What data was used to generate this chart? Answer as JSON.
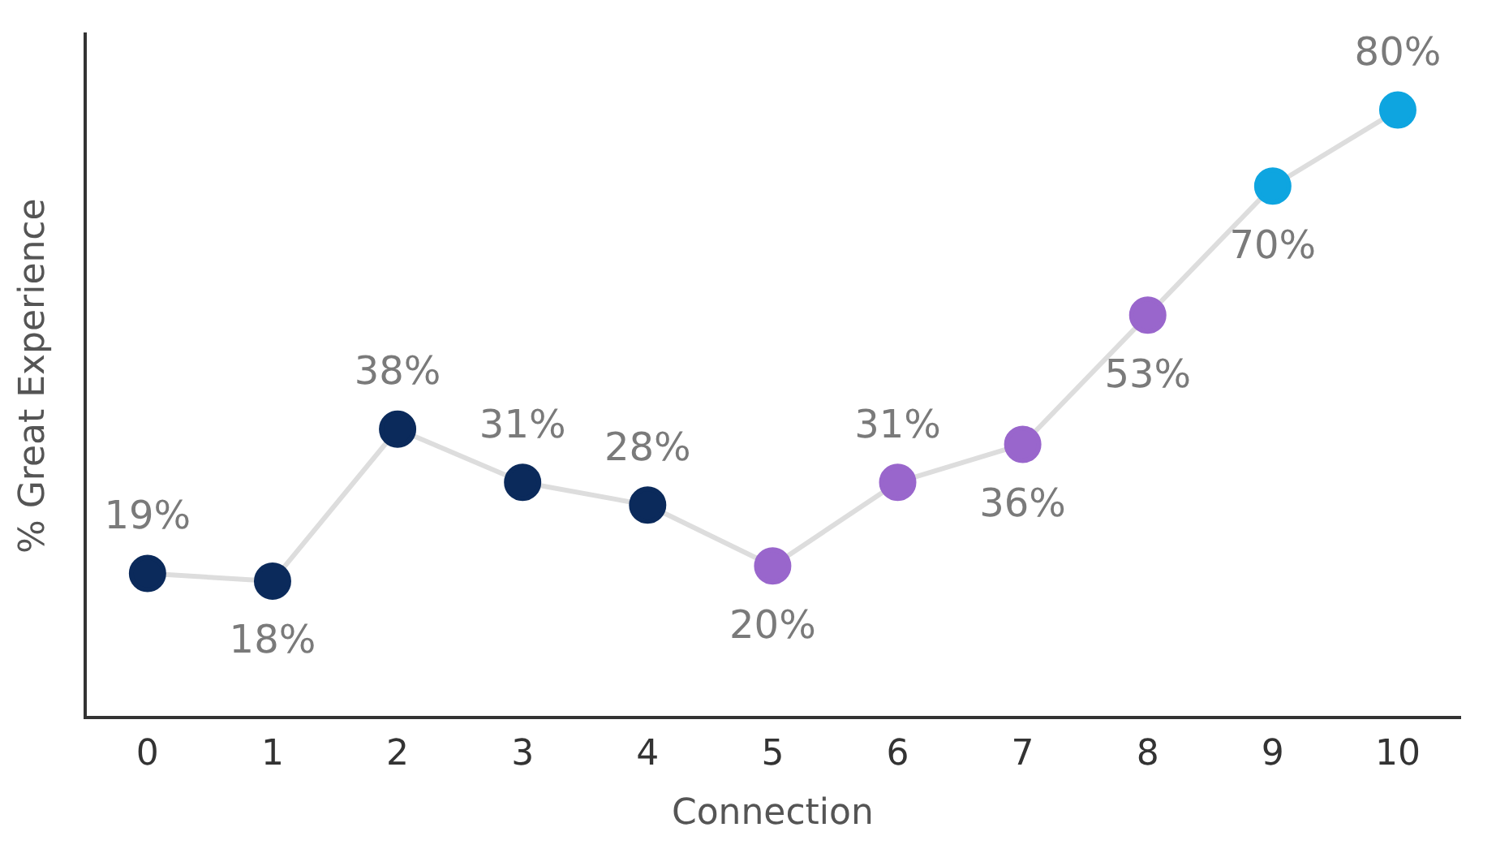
{
  "chart_data": {
    "type": "line",
    "xlabel": "Connection",
    "ylabel": "% Great Experience",
    "categories": [
      "0",
      "1",
      "2",
      "3",
      "4",
      "5",
      "6",
      "7",
      "8",
      "9",
      "10"
    ],
    "series": [
      {
        "color": "#dddddd",
        "colors": [
          "#0b2a5b",
          "#0b2a5b",
          "#0b2a5b",
          "#0b2a5b",
          "#0b2a5b",
          "#9966cc",
          "#9966cc",
          "#9966cc",
          "#9966cc",
          "#0ea5e0",
          "#0ea5e0"
        ],
        "values": [
          19,
          18,
          38,
          31,
          28,
          20,
          31,
          36,
          53,
          70,
          80
        ],
        "value_labels": [
          "19%",
          "18%",
          "38%",
          "31%",
          "28%",
          "20%",
          "31%",
          "36%",
          "53%",
          "70%",
          "80%"
        ]
      }
    ],
    "grid": false,
    "legend": false,
    "marker": "circle",
    "line_style": "solid",
    "tick_labels": "x"
  }
}
